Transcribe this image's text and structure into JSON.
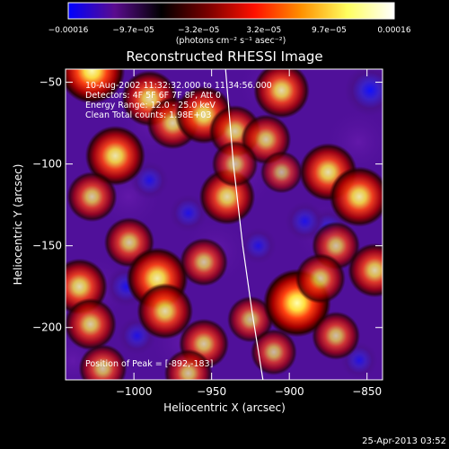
{
  "chart_data": {
    "type": "heatmap",
    "title": "Reconstructed RHESSI Image",
    "xlabel": "Heliocentric X (arcsec)",
    "ylabel": "Heliocentric Y (arcsec)",
    "xlim": [
      -1044,
      -840
    ],
    "ylim": [
      -232,
      -42
    ],
    "x_ticks": [
      -1000,
      -950,
      -900,
      -850
    ],
    "x_tick_labels": [
      "−1000",
      "−950",
      "−900",
      "−850"
    ],
    "y_ticks": [
      -50,
      -100,
      -150,
      -200
    ],
    "y_tick_labels": [
      "−50",
      "−100",
      "−150",
      "−200"
    ],
    "colorbar": {
      "range": [
        -0.00016,
        0.00016
      ],
      "tick_labels": [
        "−0.00016",
        "−9.7e−05",
        "−3.2e−05",
        "3.2e−05",
        "9.7e−05",
        "0.00016"
      ],
      "unit_label": "(photons cm⁻² s⁻¹ asec⁻²)",
      "colors": [
        "#0000ff",
        "#5a0c8e",
        "#000000",
        "#7a0000",
        "#ff1000",
        "#ff9000",
        "#ffff60",
        "#ffffff"
      ]
    },
    "annotations": [
      "10-Aug-2002 11:32:32.000 to 11:34:56.000",
      "Detectors: 4F 5F 6F 7F 8F, Att 0",
      "Energy Range: 12.0 - 25.0 keV",
      "Clean     Total counts: 1.98E+03"
    ],
    "peak_label": "Position of Peak = [-892,-183]",
    "peak": [
      -892,
      -183
    ],
    "limb_curve": [
      [
        -941,
        -42
      ],
      [
        -936,
        -100
      ],
      [
        -930,
        -150
      ],
      [
        -924,
        -190
      ],
      [
        -917,
        -232
      ]
    ],
    "sources": [
      {
        "x": -1027,
        "y": -43,
        "v": 0.95
      },
      {
        "x": -1012,
        "y": -95,
        "v": 0.8
      },
      {
        "x": -1027,
        "y": -120,
        "v": 0.55
      },
      {
        "x": -990,
        "y": -60,
        "v": 0.7
      },
      {
        "x": -975,
        "y": -75,
        "v": 0.6
      },
      {
        "x": -955,
        "y": -70,
        "v": 0.75
      },
      {
        "x": -935,
        "y": -80,
        "v": 0.6
      },
      {
        "x": -905,
        "y": -55,
        "v": 0.7
      },
      {
        "x": -915,
        "y": -85,
        "v": 0.55
      },
      {
        "x": -940,
        "y": -120,
        "v": 0.7
      },
      {
        "x": -935,
        "y": -100,
        "v": 0.45
      },
      {
        "x": -905,
        "y": -105,
        "v": 0.35
      },
      {
        "x": -875,
        "y": -105,
        "v": 0.75
      },
      {
        "x": -855,
        "y": -120,
        "v": 0.8
      },
      {
        "x": -870,
        "y": -150,
        "v": 0.5
      },
      {
        "x": -845,
        "y": -165,
        "v": 0.65
      },
      {
        "x": -1003,
        "y": -148,
        "v": 0.55
      },
      {
        "x": -1035,
        "y": -175,
        "v": 0.7
      },
      {
        "x": -1028,
        "y": -198,
        "v": 0.6
      },
      {
        "x": -985,
        "y": -170,
        "v": 0.85
      },
      {
        "x": -980,
        "y": -190,
        "v": 0.7
      },
      {
        "x": -955,
        "y": -160,
        "v": 0.5
      },
      {
        "x": -955,
        "y": -210,
        "v": 0.55
      },
      {
        "x": -925,
        "y": -195,
        "v": 0.45
      },
      {
        "x": -895,
        "y": -185,
        "v": 1.0
      },
      {
        "x": -880,
        "y": -170,
        "v": 0.55
      },
      {
        "x": -910,
        "y": -215,
        "v": 0.45
      },
      {
        "x": -870,
        "y": -205,
        "v": 0.5
      },
      {
        "x": -1020,
        "y": -225,
        "v": 0.5
      },
      {
        "x": -965,
        "y": -228,
        "v": 0.5
      },
      {
        "x": -848,
        "y": -55,
        "v": -0.9
      },
      {
        "x": -875,
        "y": -140,
        "v": -0.6
      },
      {
        "x": -890,
        "y": -135,
        "v": -0.5
      },
      {
        "x": -1005,
        "y": -175,
        "v": -0.55
      },
      {
        "x": -998,
        "y": -205,
        "v": -0.45
      },
      {
        "x": -1040,
        "y": -175,
        "v": -0.4
      },
      {
        "x": -965,
        "y": -130,
        "v": -0.45
      },
      {
        "x": -920,
        "y": -150,
        "v": -0.4
      },
      {
        "x": -990,
        "y": -110,
        "v": -0.45
      },
      {
        "x": -855,
        "y": -220,
        "v": -0.4
      }
    ]
  },
  "footer": {
    "date_stamp": "25-Apr-2013 03:52"
  }
}
